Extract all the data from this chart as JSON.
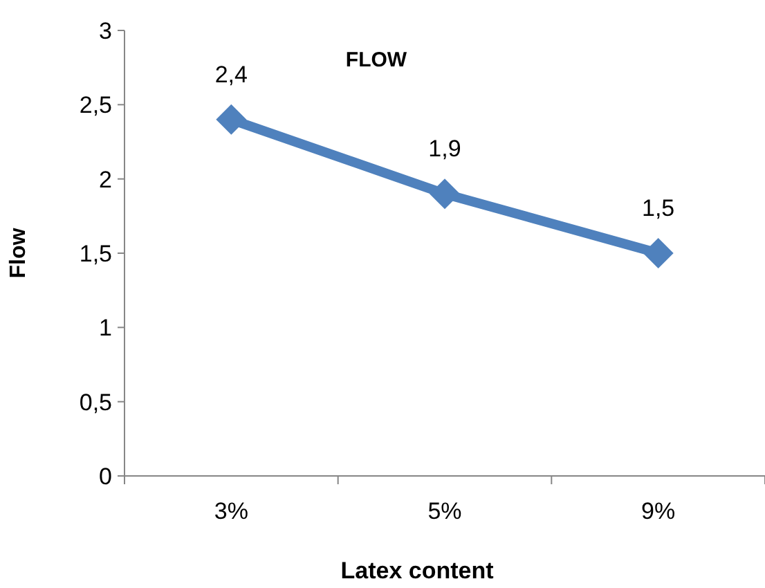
{
  "chart_data": {
    "type": "line",
    "title": "FLOW",
    "xlabel": "Latex content",
    "ylabel": "Flow",
    "categories": [
      "3%",
      "5%",
      "9%"
    ],
    "series": [
      {
        "color": "#4f81bd",
        "values": [
          2.4,
          1.9,
          1.5
        ],
        "value_labels": [
          "2,4",
          "1,9",
          "1,5"
        ]
      }
    ],
    "ylim": [
      0,
      3
    ],
    "yticks": [
      0,
      {
        "value": 0.5,
        "label": "0,5"
      },
      1,
      {
        "value": 1.5,
        "label": "1,5"
      },
      2,
      {
        "value": 2.5,
        "label": "2,5"
      },
      3
    ],
    "marker": "diamond",
    "line_style": "solid"
  }
}
